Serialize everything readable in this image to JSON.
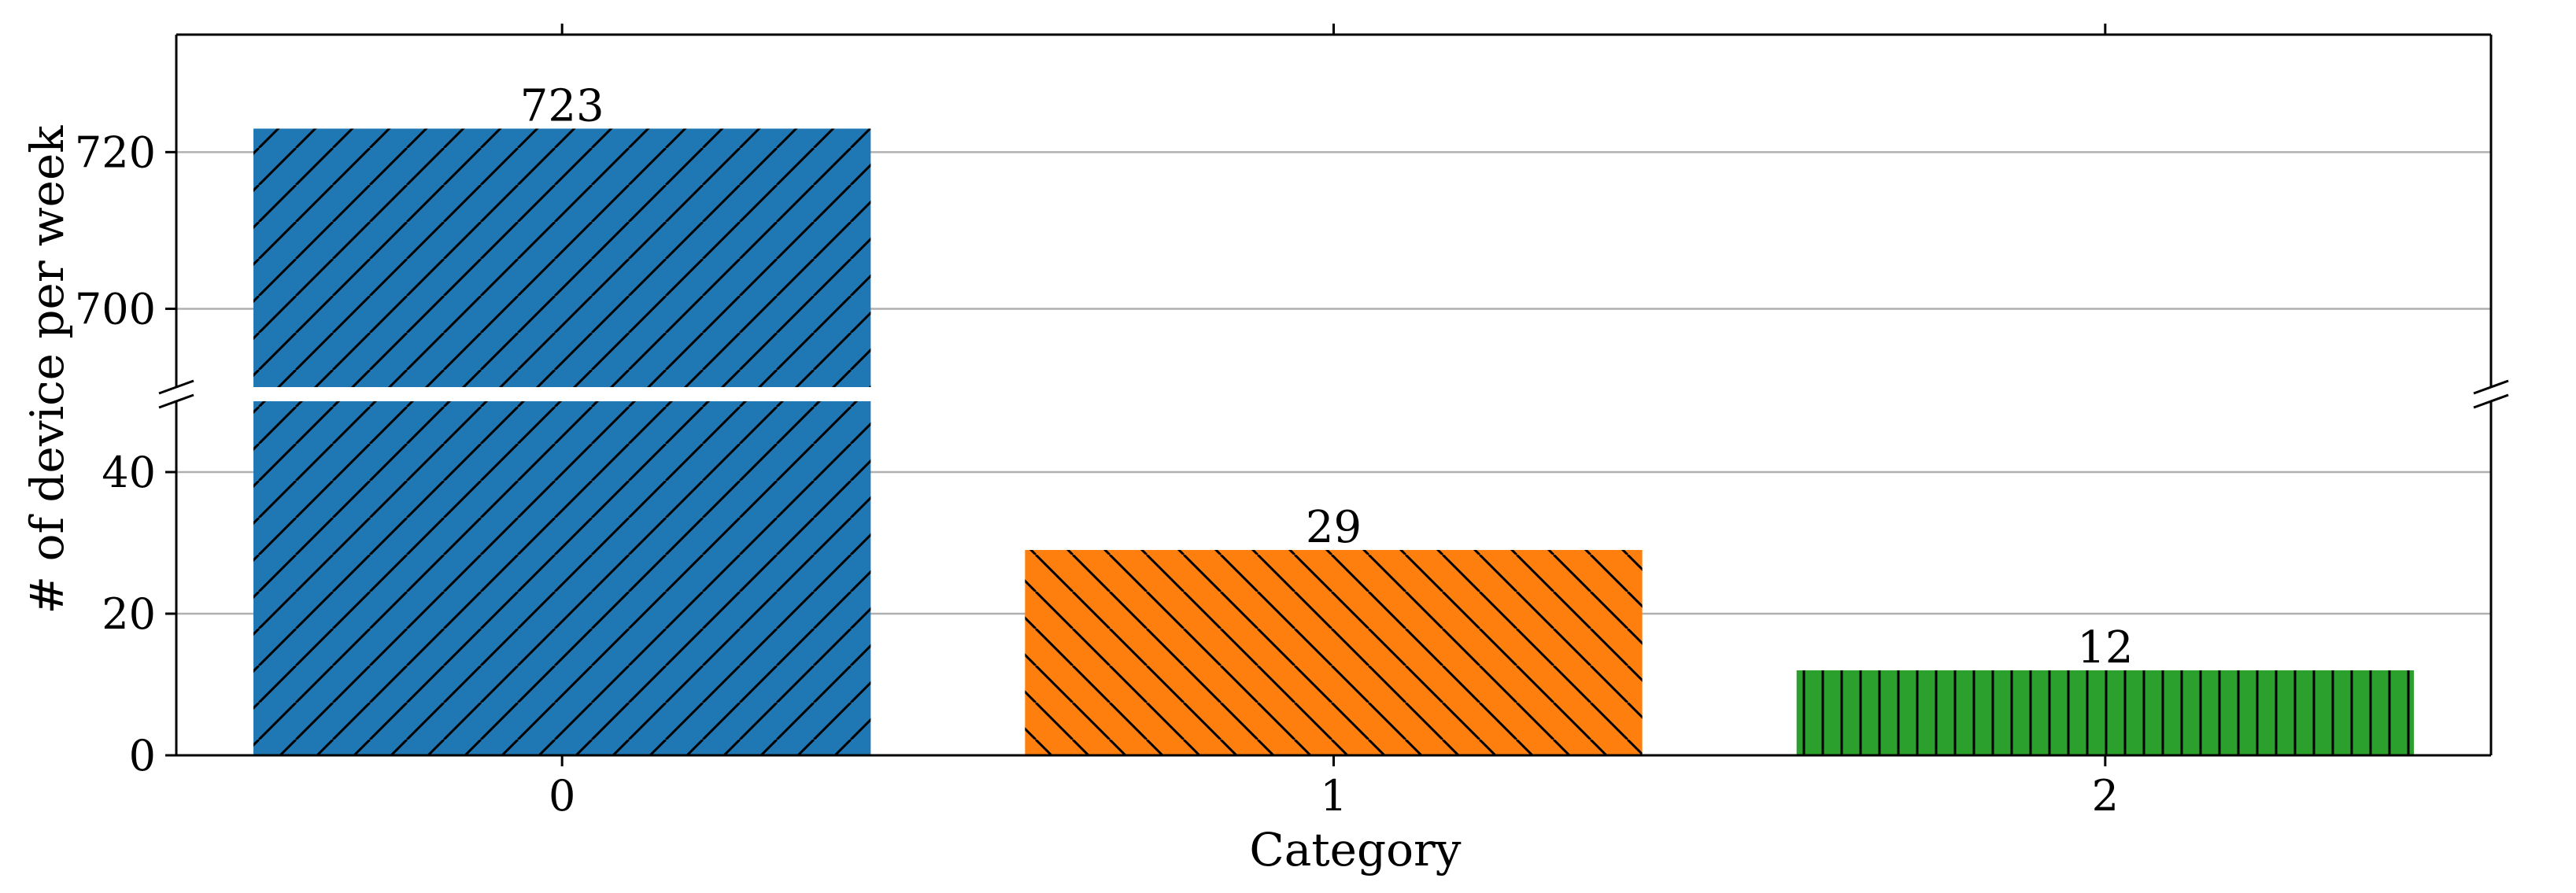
{
  "chart_data": {
    "type": "bar",
    "broken_y_axis": true,
    "categories": [
      "0",
      "1",
      "2"
    ],
    "values": [
      723,
      29,
      12
    ],
    "value_labels": [
      "723",
      "29",
      "12"
    ],
    "colors": [
      "#1f77b4",
      "#ff7f0e",
      "#2ca02c"
    ],
    "hatches": [
      "forward-diagonal",
      "back-diagonal",
      "vertical"
    ],
    "xlabel": "Category",
    "ylabel": "# of device per week",
    "upper_ylim": [
      690,
      735
    ],
    "lower_ylim": [
      0,
      50
    ],
    "upper_yticks": [
      700,
      720
    ],
    "lower_yticks": [
      0,
      20,
      40
    ],
    "grid": "horizontal"
  }
}
